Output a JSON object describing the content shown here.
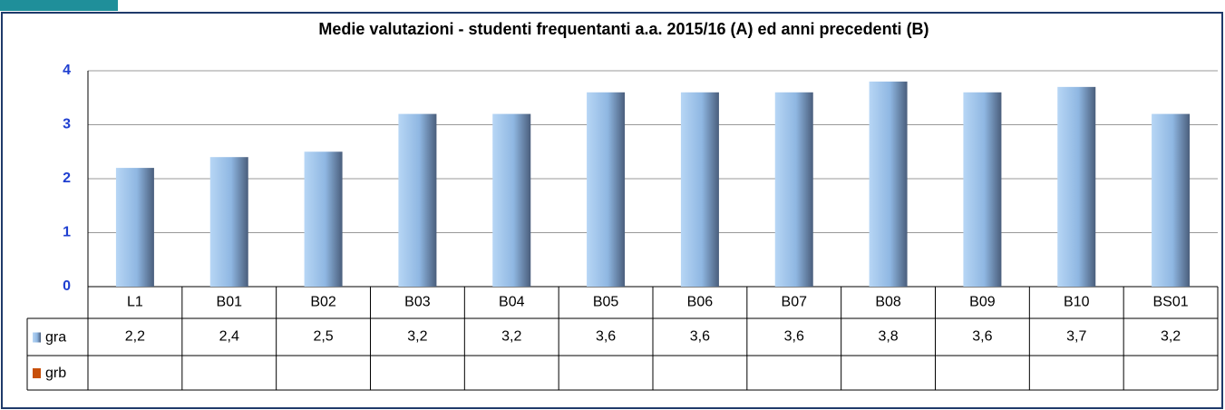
{
  "chart_data": {
    "type": "bar",
    "title": "Medie valutazioni - studenti frequentanti  a.a. 2015/16 (A) ed anni precedenti (B)",
    "categories": [
      "L1",
      "B01",
      "B02",
      "B03",
      "B04",
      "B05",
      "B06",
      "B07",
      "B08",
      "B09",
      "B10",
      "BS01"
    ],
    "series": [
      {
        "name": "gra",
        "color": "#8ab4e0",
        "values": [
          2.2,
          2.4,
          2.5,
          3.2,
          3.2,
          3.6,
          3.6,
          3.6,
          3.8,
          3.6,
          3.7,
          3.2
        ],
        "value_labels": [
          "2,2",
          "2,4",
          "2,5",
          "3,2",
          "3,2",
          "3,6",
          "3,6",
          "3,6",
          "3,8",
          "3,6",
          "3,7",
          "3,2"
        ]
      },
      {
        "name": "grb",
        "color": "#c8500a",
        "values": [
          null,
          null,
          null,
          null,
          null,
          null,
          null,
          null,
          null,
          null,
          null,
          null
        ]
      }
    ],
    "ylim": [
      0,
      4
    ],
    "yticks": [
      0,
      1,
      2,
      3,
      4
    ],
    "grid": true
  }
}
